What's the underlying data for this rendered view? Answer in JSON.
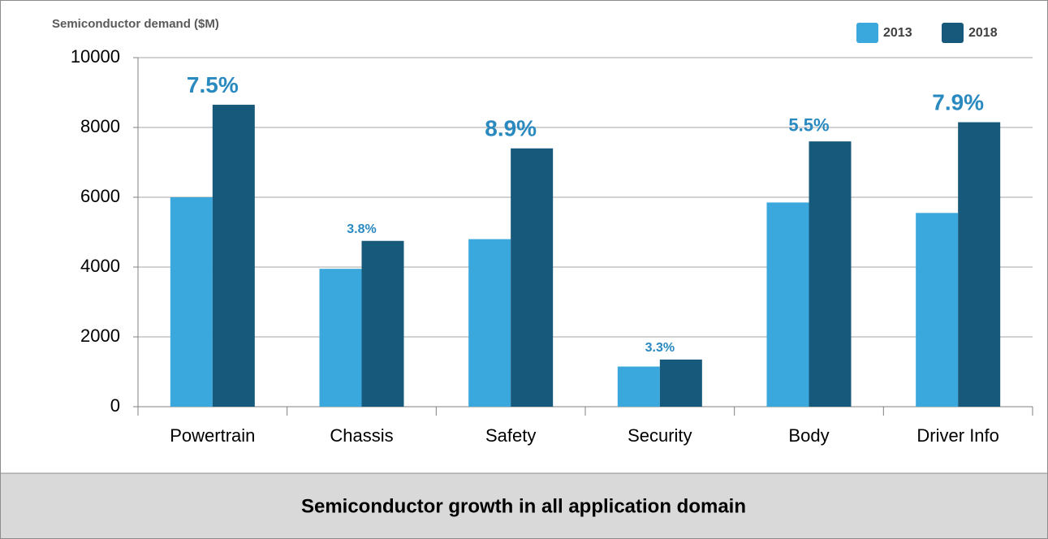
{
  "chart_data": {
    "type": "bar",
    "y_axis_label": "Semiconductor demand ($M)",
    "caption": "Semiconductor growth in all application domain",
    "categories": [
      "Powertrain",
      "Chassis",
      "Safety",
      "Security",
      "Body",
      "Driver Info"
    ],
    "series": [
      {
        "name": "2013",
        "color": "#3aa8dc",
        "values": [
          6000,
          3950,
          4800,
          1150,
          5850,
          5550
        ]
      },
      {
        "name": "2018",
        "color": "#17597a",
        "values": [
          8650,
          4750,
          7400,
          1350,
          7600,
          8150
        ]
      }
    ],
    "growth_labels": [
      "7.5%",
      "3.8%",
      "8.9%",
      "3.3%",
      "5.5%",
      "7.9%"
    ],
    "ylim": [
      0,
      10000
    ],
    "yticks": [
      0,
      2000,
      4000,
      6000,
      8000,
      10000
    ],
    "grid": true,
    "legend": "top-right"
  }
}
